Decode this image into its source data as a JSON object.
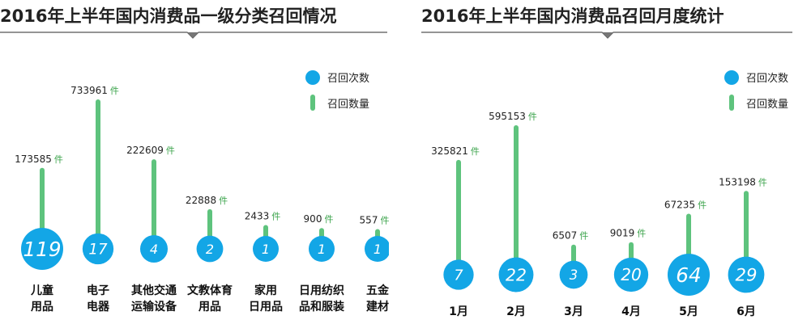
{
  "chart_data": [
    {
      "type": "bubble-stem",
      "title": "2016年上半年国内消费品一级分类召回情况",
      "legend": {
        "count_label": "召回次数",
        "quantity_label": "召回数量",
        "placement": "top-right"
      },
      "unit": "件",
      "categories": [
        [
          "儿童",
          "用品"
        ],
        [
          "电子",
          "电器"
        ],
        [
          "其他交通",
          "运输设备"
        ],
        [
          "文教体育",
          "用品"
        ],
        [
          "家用",
          "日用品"
        ],
        [
          "日用纺织",
          "品和服装"
        ],
        [
          "五金",
          "建材"
        ]
      ],
      "series": [
        {
          "name": "召回次数",
          "values": [
            119,
            17,
            4,
            2,
            1,
            1,
            1
          ]
        },
        {
          "name": "召回数量",
          "values": [
            173585,
            733961,
            222609,
            22888,
            2433,
            900,
            557
          ]
        }
      ],
      "colors": {
        "bubble": "#13a6e6",
        "stem": "#5ec37d",
        "unit": "#3aa34a"
      }
    },
    {
      "type": "bubble-stem",
      "title": "2016年上半年国内消费品召回月度统计",
      "legend": {
        "count_label": "召回次数",
        "quantity_label": "召回数量",
        "placement": "top-right"
      },
      "unit": "件",
      "categories": [
        [
          "1月"
        ],
        [
          "2月"
        ],
        [
          "3月"
        ],
        [
          "4月"
        ],
        [
          "5月"
        ],
        [
          "6月"
        ]
      ],
      "series": [
        {
          "name": "召回次数",
          "values": [
            7,
            22,
            3,
            20,
            64,
            29
          ]
        },
        {
          "name": "召回数量",
          "values": [
            325821,
            595153,
            6507,
            9019,
            67235,
            153198
          ]
        }
      ],
      "colors": {
        "bubble": "#13a6e6",
        "stem": "#5ec37d",
        "unit": "#3aa34a"
      }
    }
  ]
}
